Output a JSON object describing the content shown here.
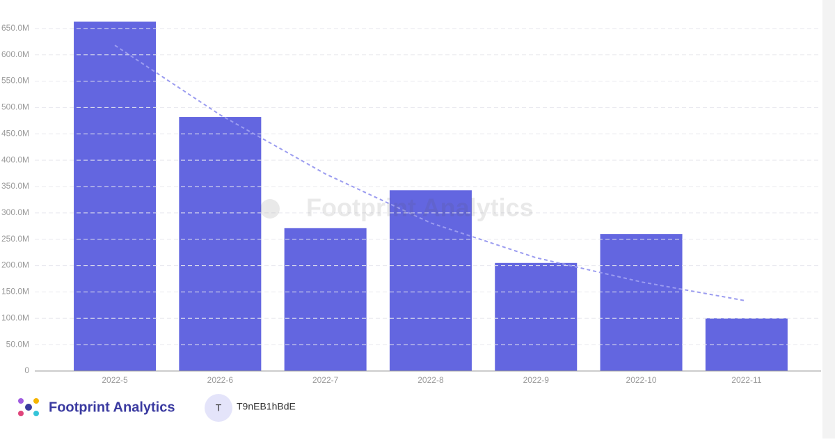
{
  "chart_data": {
    "type": "bar",
    "categories": [
      "2022-5",
      "2022-6",
      "2022-7",
      "2022-8",
      "2022-9",
      "2022-10",
      "2022-11"
    ],
    "series": [
      {
        "type": "bar",
        "color": "#6366e0",
        "values": [
          663,
          482,
          271,
          343,
          205,
          260,
          100
        ]
      },
      {
        "type": "line",
        "color": "#9b9cf0",
        "values": [
          618,
          486,
          374,
          281,
          215,
          169,
          133
        ]
      }
    ],
    "ylim": [
      0,
      700
    ],
    "yticks": [
      0,
      {
        "value": 50,
        "label": "50.0M"
      },
      {
        "value": 100,
        "label": "100.0M"
      },
      {
        "value": 150,
        "label": "150.0M"
      },
      {
        "value": 200,
        "label": "200.0M"
      },
      {
        "value": 250,
        "label": "250.0M"
      },
      {
        "value": 300,
        "label": "300.0M"
      },
      {
        "value": 350,
        "label": "350.0M"
      },
      {
        "value": 400,
        "label": "400.0M"
      },
      {
        "value": 450,
        "label": "450.0M"
      },
      {
        "value": 500,
        "label": "500.0M"
      },
      {
        "value": 550,
        "label": "550.0M"
      },
      {
        "value": 600,
        "label": "600.0M"
      },
      {
        "value": 650,
        "label": "650.0M"
      }
    ],
    "grid": true
  },
  "watermark": "Footprint Analytics",
  "footer": {
    "brand": "Footprint Analytics",
    "avatar": "T",
    "user": "T9nEB1hBdE"
  }
}
